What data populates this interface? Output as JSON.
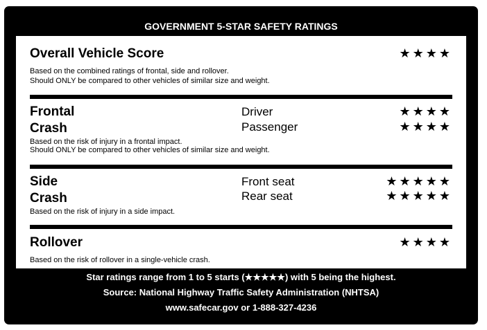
{
  "header": {
    "title": "GOVERNMENT 5-STAR SAFETY RATINGS"
  },
  "overall": {
    "title": "Overall Vehicle Score",
    "stars": "★★★★",
    "rating": 4,
    "desc": [
      "Based on the combined ratings of frontal, side and rollover.",
      "Should ONLY be compared to other vehicles of similar size and weight."
    ]
  },
  "frontal": {
    "title": [
      "Frontal",
      "Crash"
    ],
    "rows": [
      {
        "label": "Driver",
        "stars": "★★★★",
        "rating": 4
      },
      {
        "label": "Passenger",
        "stars": "★★★★",
        "rating": 4
      }
    ],
    "desc": [
      "Based on the risk of injury in a frontal impact.",
      "Should ONLY be compared to other vehicles of similar size and weight."
    ]
  },
  "side": {
    "title": [
      "Side",
      "Crash"
    ],
    "rows": [
      {
        "label": "Front seat",
        "stars": "★★★★★",
        "rating": 5
      },
      {
        "label": "Rear seat",
        "stars": "★★★★★",
        "rating": 5
      }
    ],
    "desc": [
      "Based on the risk of injury in a side impact."
    ]
  },
  "rollover": {
    "title": "Rollover",
    "stars": "★★★★",
    "rating": 4,
    "desc": [
      "Based on the risk of rollover in a single-vehicle crash."
    ]
  },
  "footer": {
    "lines": [
      "Star ratings range from 1 to 5 starts (★★★★★) with 5 being the highest.",
      "Source: National Highway Traffic Safety Administration (NHTSA)",
      "www.safecar.gov or 1-888-327-4236"
    ]
  }
}
